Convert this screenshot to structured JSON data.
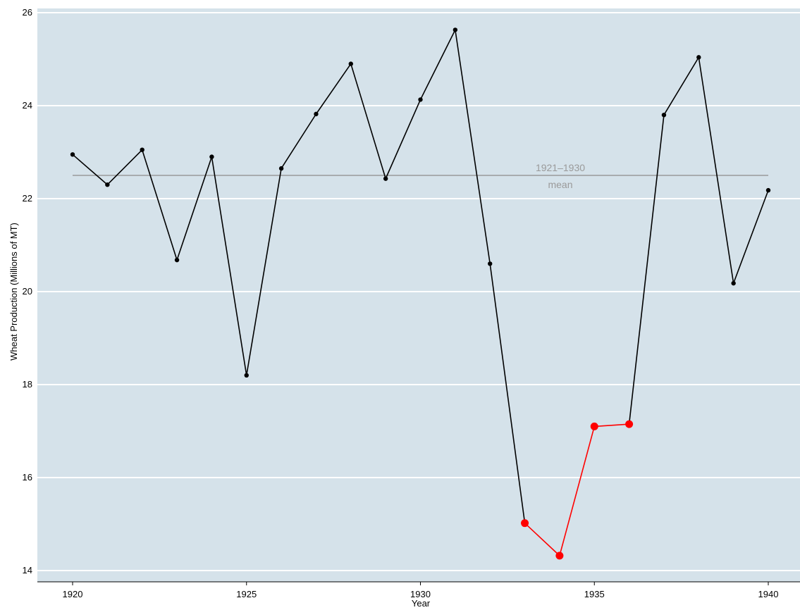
{
  "chart_data": {
    "type": "line",
    "xlabel": "Year",
    "ylabel": "Wheat Production (Millions of MT)",
    "xlim": [
      1920,
      1940
    ],
    "ylim": [
      14,
      26
    ],
    "x_ticks": [
      "1920",
      "1925",
      "1930",
      "1935",
      "1940"
    ],
    "y_ticks": [
      "14",
      "16",
      "18",
      "20",
      "22",
      "24",
      "26"
    ],
    "grid": true,
    "legend": "none",
    "series": [
      {
        "color": "#000000",
        "points": [
          [
            1920,
            22.95
          ],
          [
            1921,
            22.3
          ],
          [
            1922,
            23.05
          ],
          [
            1923,
            20.68
          ],
          [
            1924,
            22.9
          ],
          [
            1925,
            18.2
          ],
          [
            1926,
            22.65
          ],
          [
            1927,
            23.82
          ],
          [
            1928,
            24.9
          ],
          [
            1929,
            22.43
          ],
          [
            1930,
            24.13
          ],
          [
            1931,
            25.63
          ],
          [
            1932,
            20.6
          ],
          [
            1933,
            15.02
          ]
        ]
      },
      {
        "color": "#ff0000",
        "points": [
          [
            1933,
            15.02
          ],
          [
            1934,
            14.32
          ],
          [
            1935,
            17.1
          ],
          [
            1936,
            17.15
          ]
        ]
      },
      {
        "color": "#000000",
        "points": [
          [
            1936,
            17.15
          ],
          [
            1937,
            23.8
          ],
          [
            1938,
            25.04
          ],
          [
            1939,
            20.18
          ],
          [
            1940,
            22.18
          ]
        ]
      }
    ],
    "reference_line": {
      "y": 22.5,
      "x_range": [
        1920,
        1940
      ],
      "color": "#9a9a9a",
      "label_line1": "1921–1930",
      "label_line2": "mean"
    },
    "colors": {
      "panel_background": "#d5e2ea",
      "gridline": "#ffffff",
      "highlight": "#ff0000"
    }
  }
}
